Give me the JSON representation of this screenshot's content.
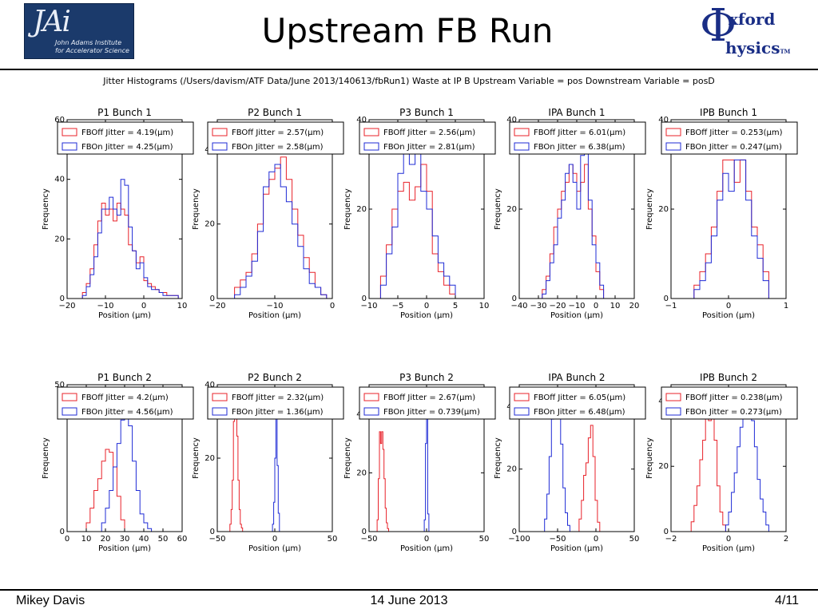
{
  "slide": {
    "title": "Upstream FB Run",
    "figure_title": "Jitter Histograms (/Users/davism/ATF Data/June 2013/140613/fbRun1) Waste at IP B Upstream Variable = pos Downstream Variable = posD",
    "footer_left": "Mikey Davis",
    "footer_center": "14 June 2013",
    "footer_right": "4/11",
    "logo_left": {
      "mark": "JAi",
      "line1": "John Adams Institute",
      "line2": "for Accelerator Science"
    },
    "logo_right": {
      "phi": "Φ",
      "line1": "xford",
      "line2": "hysics",
      "tm": "TM"
    }
  },
  "colors": {
    "fboff": "#e8222a",
    "fbon": "#1f2bd6",
    "logo_blue": "#1b3a6b"
  },
  "chart_data": [
    {
      "type": "histogram",
      "title": "P1 Bunch 1",
      "xlabel": "Position (μm)",
      "ylabel": "Frequency",
      "xlim": [
        -20,
        10
      ],
      "ylim": [
        0,
        60
      ],
      "xticks": [
        "−20",
        "−10",
        "0",
        "10"
      ],
      "yticks": [
        "0",
        "20",
        "40",
        "60"
      ],
      "series": [
        {
          "name": "FBOff Jitter = 4.19(μm)",
          "edges": [
            -16,
            -15,
            -14,
            -13,
            -12,
            -11,
            -10,
            -9,
            -8,
            -7,
            -6,
            -5,
            -4,
            -3,
            -2,
            -1,
            0,
            1,
            2,
            3,
            4,
            5,
            6,
            7,
            8,
            9
          ],
          "counts": [
            2,
            5,
            10,
            18,
            26,
            32,
            28,
            30,
            26,
            32,
            30,
            28,
            18,
            16,
            12,
            14,
            6,
            5,
            4,
            3,
            2,
            2,
            1,
            1,
            1
          ]
        },
        {
          "name": "FBOn Jitter = 4.25(μm)",
          "edges": [
            -16,
            -15,
            -14,
            -13,
            -12,
            -11,
            -10,
            -9,
            -8,
            -7,
            -6,
            -5,
            -4,
            -3,
            -2,
            -1,
            0,
            1,
            2,
            3,
            4,
            5,
            6,
            7,
            8,
            9
          ],
          "counts": [
            1,
            4,
            8,
            14,
            22,
            30,
            30,
            34,
            30,
            28,
            40,
            38,
            24,
            16,
            10,
            12,
            7,
            4,
            3,
            3,
            2,
            1,
            1,
            1,
            1
          ]
        }
      ]
    },
    {
      "type": "histogram",
      "title": "P2 Bunch 1",
      "xlabel": "Position (μm)",
      "ylabel": "Frequency",
      "xlim": [
        -20,
        0
      ],
      "ylim": [
        0,
        48
      ],
      "xticks": [
        "−20",
        "−10",
        "0"
      ],
      "yticks": [
        "0",
        "20",
        "40"
      ],
      "series": [
        {
          "name": "FBOff Jitter = 2.57(μm)",
          "edges": [
            -17,
            -16,
            -15,
            -14,
            -13,
            -12,
            -11,
            -10,
            -9,
            -8,
            -7,
            -6,
            -5,
            -4,
            -3,
            -2,
            -1
          ],
          "counts": [
            3,
            5,
            7,
            12,
            20,
            28,
            32,
            35,
            38,
            32,
            24,
            17,
            11,
            7,
            3,
            1
          ]
        },
        {
          "name": "FBOn Jitter = 2.58(μm)",
          "edges": [
            -17,
            -16,
            -15,
            -14,
            -13,
            -12,
            -11,
            -10,
            -9,
            -8,
            -7,
            -6,
            -5,
            -4,
            -3,
            -2,
            -1
          ],
          "counts": [
            1,
            3,
            6,
            10,
            18,
            30,
            34,
            36,
            30,
            26,
            20,
            14,
            8,
            4,
            3,
            1
          ]
        }
      ]
    },
    {
      "type": "histogram",
      "title": "P3 Bunch 1",
      "xlabel": "Position (μm)",
      "ylabel": "Frequency",
      "xlim": [
        -10,
        10
      ],
      "ylim": [
        0,
        40
      ],
      "xticks": [
        "−10",
        "−5",
        "0",
        "5",
        "10"
      ],
      "yticks": [
        "0",
        "20",
        "40"
      ],
      "series": [
        {
          "name": "FBOff Jitter = 2.56(μm)",
          "edges": [
            -8,
            -7,
            -6,
            -5,
            -4,
            -3,
            -2,
            -1,
            0,
            1,
            2,
            3,
            4,
            5
          ],
          "counts": [
            5,
            12,
            20,
            24,
            26,
            22,
            25,
            30,
            24,
            10,
            6,
            3,
            1
          ]
        },
        {
          "name": "FBOn Jitter = 2.81(μm)",
          "edges": [
            -8,
            -7,
            -6,
            -5,
            -4,
            -3,
            -2,
            -1,
            0,
            1,
            2,
            3,
            4,
            5
          ],
          "counts": [
            3,
            10,
            16,
            28,
            34,
            30,
            33,
            24,
            20,
            14,
            8,
            5,
            3
          ]
        }
      ]
    },
    {
      "type": "histogram",
      "title": "IPA Bunch 1",
      "xlabel": "Position (μm)",
      "ylabel": "Frequency",
      "xlim": [
        -40,
        20
      ],
      "ylim": [
        0,
        40
      ],
      "xticks": [
        "−40",
        "−30",
        "−20",
        "−10",
        "0",
        "10",
        "20"
      ],
      "yticks": [
        "0",
        "20",
        "40"
      ],
      "series": [
        {
          "name": "FBOff Jitter = 6.01(μm)",
          "edges": [
            -28,
            -26,
            -24,
            -22,
            -20,
            -18,
            -16,
            -14,
            -12,
            -10,
            -8,
            -6,
            -4,
            -2,
            0,
            2,
            4
          ],
          "counts": [
            2,
            5,
            10,
            16,
            20,
            24,
            26,
            30,
            28,
            24,
            26,
            30,
            20,
            14,
            6,
            2
          ]
        },
        {
          "name": "FBOn Jitter = 6.38(μm)",
          "edges": [
            -28,
            -26,
            -24,
            -22,
            -20,
            -18,
            -16,
            -14,
            -12,
            -10,
            -8,
            -6,
            -4,
            -2,
            0,
            2,
            4
          ],
          "counts": [
            1,
            4,
            8,
            12,
            18,
            22,
            28,
            30,
            26,
            20,
            32,
            34,
            22,
            12,
            8,
            3
          ]
        }
      ]
    },
    {
      "type": "histogram",
      "title": "IPB Bunch 1",
      "xlabel": "Position (μm)",
      "ylabel": "Frequency",
      "xlim": [
        -1,
        1
      ],
      "ylim": [
        0,
        40
      ],
      "xticks": [
        "−1",
        "0",
        "1"
      ],
      "yticks": [
        "0",
        "20",
        "40"
      ],
      "series": [
        {
          "name": "FBOff Jitter = 0.253(μm)",
          "edges": [
            -0.6,
            -0.5,
            -0.4,
            -0.3,
            -0.2,
            -0.1,
            0,
            0.1,
            0.2,
            0.3,
            0.4,
            0.5,
            0.6,
            0.7
          ],
          "counts": [
            3,
            6,
            10,
            16,
            24,
            31,
            31,
            26,
            31,
            24,
            16,
            12,
            6
          ]
        },
        {
          "name": "FBOn Jitter = 0.247(μm)",
          "edges": [
            -0.6,
            -0.5,
            -0.4,
            -0.3,
            -0.2,
            -0.1,
            0,
            0.1,
            0.2,
            0.3,
            0.4,
            0.5,
            0.6,
            0.7
          ],
          "counts": [
            2,
            4,
            8,
            14,
            22,
            28,
            24,
            31,
            31,
            22,
            14,
            9,
            4
          ]
        }
      ]
    },
    {
      "type": "histogram",
      "title": "P1 Bunch 2",
      "xlabel": "Position (μm)",
      "ylabel": "Frequency",
      "xlim": [
        0,
        60
      ],
      "ylim": [
        0,
        50
      ],
      "xticks": [
        "0",
        "10",
        "20",
        "30",
        "40",
        "50",
        "60"
      ],
      "yticks": [
        "0",
        "50"
      ],
      "series": [
        {
          "name": "FBOff Jitter = 4.2(μm)",
          "edges": [
            10,
            12,
            14,
            16,
            18,
            20,
            22,
            24,
            26,
            28,
            30
          ],
          "counts": [
            3,
            8,
            14,
            18,
            24,
            28,
            27,
            22,
            12,
            4
          ]
        },
        {
          "name": "FBOn Jitter = 4.56(μm)",
          "edges": [
            18,
            20,
            22,
            24,
            26,
            28,
            30,
            32,
            34,
            36,
            38,
            40,
            42,
            44
          ],
          "counts": [
            3,
            8,
            14,
            22,
            30,
            38,
            44,
            36,
            24,
            14,
            6,
            3,
            1
          ]
        }
      ]
    },
    {
      "type": "histogram",
      "title": "P2 Bunch 2",
      "xlabel": "Position (μm)",
      "ylabel": "Frequency",
      "xlim": [
        -50,
        50
      ],
      "ylim": [
        0,
        40
      ],
      "xticks": [
        "−50",
        "0",
        "50"
      ],
      "yticks": [
        "0",
        "20",
        "40"
      ],
      "series": [
        {
          "name": "FBOff Jitter = 2.32(μm)",
          "edges": [
            -39,
            -38,
            -37,
            -36,
            -35,
            -34,
            -33,
            -32,
            -31,
            -30,
            -29,
            -28
          ],
          "counts": [
            2,
            6,
            14,
            30,
            34,
            36,
            26,
            14,
            6,
            2,
            1
          ]
        },
        {
          "name": "FBOn Jitter = 1.36(μm)",
          "edges": [
            -2,
            -1,
            0,
            1,
            2,
            3,
            4
          ],
          "counts": [
            2,
            8,
            20,
            33,
            18,
            5
          ]
        }
      ]
    },
    {
      "type": "histogram",
      "title": "P3 Bunch 2",
      "xlabel": "Position (μm)",
      "ylabel": "Frequency",
      "xlim": [
        -50,
        50
      ],
      "ylim": [
        0,
        50
      ],
      "xticks": [
        "−50",
        "0",
        "50"
      ],
      "yticks": [
        "0",
        "20",
        "40"
      ],
      "series": [
        {
          "name": "FBOff Jitter = 2.67(μm)",
          "edges": [
            -43,
            -42,
            -41,
            -40,
            -39,
            -38,
            -37,
            -36,
            -35,
            -34,
            -33
          ],
          "counts": [
            4,
            18,
            34,
            30,
            34,
            28,
            18,
            8,
            3,
            1
          ]
        },
        {
          "name": "FBOn Jitter = 0.739(μm)",
          "edges": [
            -2,
            -1,
            0,
            1,
            2
          ],
          "counts": [
            4,
            30,
            47,
            6
          ]
        }
      ]
    },
    {
      "type": "histogram",
      "title": "IPA Bunch 2",
      "xlabel": "Position (μm)",
      "ylabel": "Frequency",
      "xlim": [
        -100,
        50
      ],
      "ylim": [
        0,
        47
      ],
      "xticks": [
        "−100",
        "−50",
        "0",
        "50"
      ],
      "yticks": [
        "0",
        "20",
        "40"
      ],
      "series": [
        {
          "name": "FBOff Jitter = 6.05(μm)",
          "edges": [
            -22,
            -19,
            -16,
            -13,
            -10,
            -7,
            -4,
            -1,
            2,
            5
          ],
          "counts": [
            4,
            10,
            18,
            22,
            30,
            34,
            24,
            10,
            3
          ]
        },
        {
          "name": "FBOn Jitter = 6.48(μm)",
          "edges": [
            -67,
            -64,
            -61,
            -58,
            -55,
            -52,
            -49,
            -46,
            -43,
            -40,
            -37,
            -34
          ],
          "counts": [
            4,
            12,
            24,
            36,
            44,
            38,
            44,
            28,
            14,
            6,
            2
          ]
        }
      ]
    },
    {
      "type": "histogram",
      "title": "IPB Bunch 2",
      "xlabel": "Position (μm)",
      "ylabel": "Frequency",
      "xlim": [
        -2,
        2
      ],
      "ylim": [
        0,
        45
      ],
      "xticks": [
        "−2",
        "0",
        "2"
      ],
      "yticks": [
        "0",
        "20",
        "40"
      ],
      "series": [
        {
          "name": "FBOff Jitter = 0.238(μm)",
          "edges": [
            -1.3,
            -1.2,
            -1.1,
            -1.0,
            -0.9,
            -0.8,
            -0.7,
            -0.6,
            -0.5,
            -0.4,
            -0.3,
            -0.2,
            -0.1
          ],
          "counts": [
            3,
            8,
            14,
            22,
            28,
            35,
            34,
            36,
            28,
            14,
            6,
            2
          ]
        },
        {
          "name": "FBOn Jitter = 0.273(μm)",
          "edges": [
            -0.1,
            0,
            0.1,
            0.2,
            0.3,
            0.4,
            0.5,
            0.6,
            0.7,
            0.8,
            0.9,
            1.0,
            1.1,
            1.2,
            1.3,
            1.4
          ],
          "counts": [
            2,
            6,
            12,
            18,
            26,
            32,
            38,
            42,
            40,
            34,
            26,
            16,
            10,
            6,
            2
          ]
        }
      ]
    }
  ]
}
